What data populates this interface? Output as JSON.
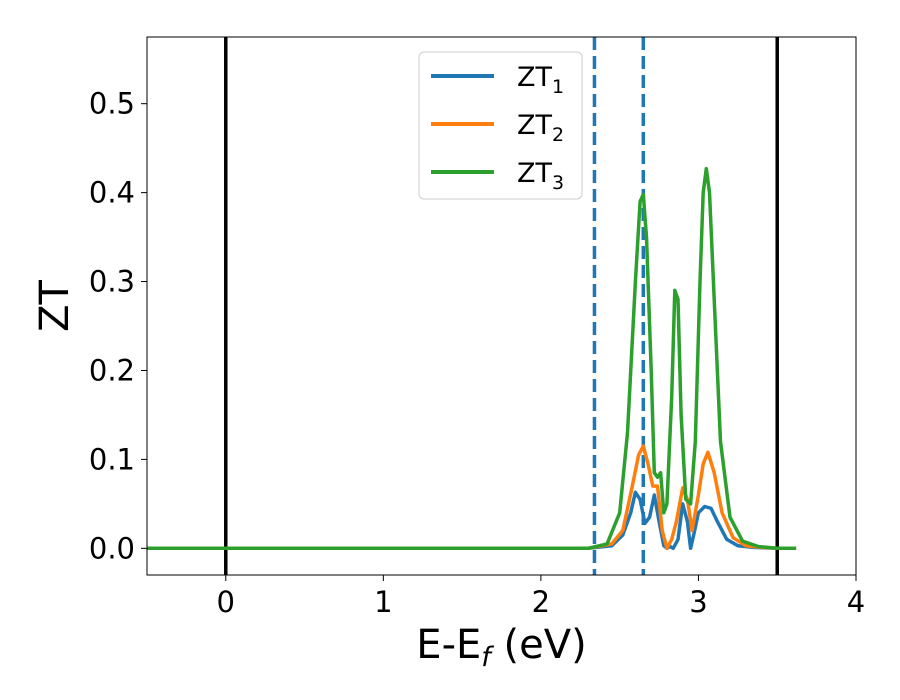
{
  "chart_data": {
    "type": "line",
    "title": "",
    "xlabel": {
      "main": "E-E",
      "sub": "f",
      "suffix": " (eV)"
    },
    "ylabel": "ZT",
    "xlim": [
      -0.5,
      4.0
    ],
    "ylim": [
      -0.03,
      0.575
    ],
    "xticks": [
      0,
      1,
      2,
      3,
      4
    ],
    "xtick_labels": [
      "0",
      "1",
      "2",
      "3",
      "4"
    ],
    "yticks": [
      0.0,
      0.1,
      0.2,
      0.3,
      0.4,
      0.5
    ],
    "ytick_labels": [
      "0.0",
      "0.1",
      "0.2",
      "0.3",
      "0.4",
      "0.5"
    ],
    "grid": false,
    "legend_position": "top-center",
    "vertical_lines": [
      {
        "x": 0.0,
        "style": "solid",
        "color": "#000000"
      },
      {
        "x": 3.5,
        "style": "solid",
        "color": "#000000"
      },
      {
        "x": 2.34,
        "style": "dashed",
        "color": "#1f77b4"
      },
      {
        "x": 2.65,
        "style": "dashed",
        "color": "#1f77b4"
      }
    ],
    "series": [
      {
        "name": "ZT",
        "sub": "1",
        "color": "#1f77b4",
        "x": [
          -0.5,
          2.3,
          2.45,
          2.52,
          2.57,
          2.6,
          2.63,
          2.66,
          2.69,
          2.72,
          2.75,
          2.78,
          2.8,
          2.82,
          2.84,
          2.87,
          2.9,
          2.93,
          2.95,
          2.97,
          3.0,
          3.04,
          3.08,
          3.12,
          3.18,
          3.25,
          3.35,
          3.5,
          3.62
        ],
        "y": [
          0.0,
          0.0,
          0.003,
          0.015,
          0.04,
          0.063,
          0.055,
          0.028,
          0.035,
          0.06,
          0.03,
          0.003,
          0.0,
          0.002,
          0.0,
          0.01,
          0.05,
          0.03,
          0.0,
          0.015,
          0.04,
          0.047,
          0.045,
          0.03,
          0.01,
          0.003,
          0.001,
          0.0,
          0.0
        ]
      },
      {
        "name": "ZT",
        "sub": "2",
        "color": "#ff7f0e",
        "x": [
          -0.5,
          2.3,
          2.45,
          2.52,
          2.58,
          2.62,
          2.65,
          2.68,
          2.71,
          2.74,
          2.77,
          2.8,
          2.83,
          2.86,
          2.9,
          2.93,
          2.96,
          3.0,
          3.03,
          3.06,
          3.1,
          3.15,
          3.22,
          3.3,
          3.4,
          3.5,
          3.62
        ],
        "y": [
          0.0,
          0.0,
          0.005,
          0.02,
          0.07,
          0.105,
          0.115,
          0.095,
          0.07,
          0.07,
          0.02,
          0.0,
          0.01,
          0.03,
          0.068,
          0.055,
          0.02,
          0.06,
          0.095,
          0.108,
          0.085,
          0.04,
          0.012,
          0.003,
          0.001,
          0.0,
          0.0
        ]
      },
      {
        "name": "ZT",
        "sub": "3",
        "color": "#2ca02c",
        "x": [
          -0.5,
          2.3,
          2.42,
          2.5,
          2.55,
          2.6,
          2.63,
          2.65,
          2.67,
          2.7,
          2.72,
          2.74,
          2.76,
          2.78,
          2.8,
          2.83,
          2.85,
          2.87,
          2.89,
          2.92,
          2.95,
          2.98,
          3.01,
          3.03,
          3.05,
          3.07,
          3.1,
          3.14,
          3.2,
          3.28,
          3.38,
          3.5,
          3.62
        ],
        "y": [
          0.0,
          0.0,
          0.005,
          0.04,
          0.13,
          0.3,
          0.39,
          0.398,
          0.35,
          0.2,
          0.085,
          0.08,
          0.085,
          0.04,
          0.05,
          0.17,
          0.29,
          0.28,
          0.15,
          0.055,
          0.05,
          0.12,
          0.3,
          0.4,
          0.427,
          0.4,
          0.28,
          0.12,
          0.035,
          0.008,
          0.002,
          0.0,
          0.0
        ]
      }
    ]
  }
}
